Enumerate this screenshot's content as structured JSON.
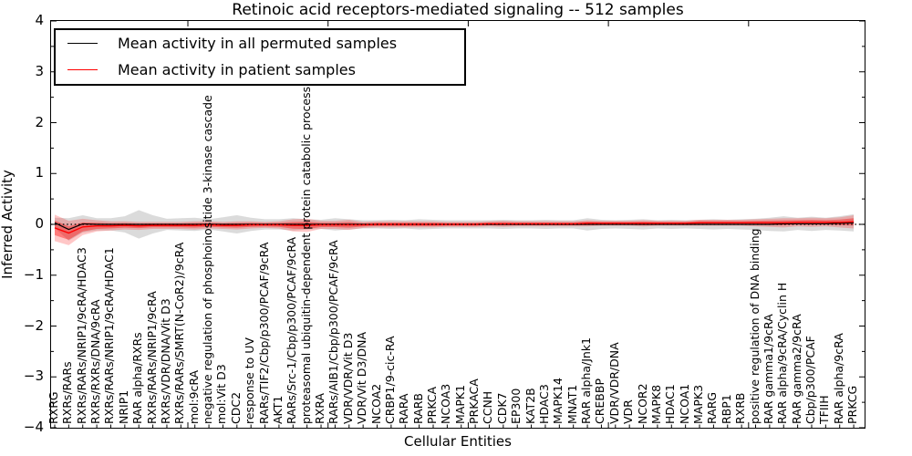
{
  "title": "Retinoic acid receptors-mediated signaling -- 512 samples",
  "axes": {
    "ylabel": "Inferred Activity",
    "xlabel": "Cellular Entities",
    "ytick_labels": [
      "4",
      "3",
      "2",
      "1",
      "0",
      "−1",
      "−2",
      "−3",
      "−4"
    ],
    "ytick_values": [
      4,
      3,
      2,
      1,
      0,
      -1,
      -2,
      -3,
      -4
    ]
  },
  "legend": {
    "entries": [
      {
        "label": "Mean activity in all permuted samples",
        "color": "#000000"
      },
      {
        "label": "Mean activity in patient samples",
        "color": "#ff0000"
      }
    ]
  },
  "chart_data": {
    "type": "line",
    "title": "Retinoic acid receptors-mediated signaling -- 512 samples",
    "xlabel": "Cellular Entities",
    "ylabel": "Inferred Activity",
    "ylim": [
      -4,
      4
    ],
    "grid": false,
    "legend_position": "upper left",
    "zero_reference_line": "dotted black at y=0",
    "categories": [
      "RXRG",
      "RXRs/RARs",
      "RXRs/RARs/NRIP1/9cRA/HDAC3",
      "RXRs/RXRs/DNA/9cRA",
      "RXRs/RARs/NRIP1/9cRA/HDAC1",
      "NRIP1",
      "RAR alpha/RXRs",
      "RXRs/RARs/NRIP1/9cRA",
      "RXRs/VDR/DNA/Vit D3",
      "RXRs/RARs/SMRT(N-CoR2)/9cRA",
      "mol:9cRA",
      "negative regulation of phosphoinositide 3-kinase cascade",
      "mol:Vit D3",
      "CDC2",
      "response to UV",
      "RARs/TIF2/Cbp/p300/PCAF/9cRA",
      "AKT1",
      "RARs/Src-1/Cbp/p300/PCAF/9cRA",
      "proteasomal ubiquitin-dependent protein catabolic process",
      "RXRA",
      "RARs/AIB1/Cbp/p300/PCAF/9cRA",
      "VDR/VDR/Vit D3",
      "VDR/Vit D3/DNA",
      "NCOA2",
      "CRBP1/9-cic-RA",
      "RARA",
      "RARB",
      "PRKCA",
      "NCOA3",
      "MAPK1",
      "PRKACA",
      "CCNH",
      "CDK7",
      "EP300",
      "KAT2B",
      "HDAC3",
      "MAPK14",
      "MNAT1",
      "RAR alpha/Jnk1",
      "CREBBP",
      "VDR/VDR/DNA",
      "VDR",
      "NCOR2",
      "MAPK8",
      "HDAC1",
      "NCOA1",
      "MAPK3",
      "RARG",
      "RBP1",
      "RXRB",
      "positive regulation of DNA binding",
      "RAR gamma1/9cRA",
      "RAR alpha/9cRA/Cyclin H",
      "RAR gamma2/9cRA",
      "Cbp/p300/PCAF",
      "TFIIH",
      "RAR alpha/9cRA",
      "PRKCG"
    ],
    "series": [
      {
        "name": "Mean activity in all permuted samples",
        "color": "#000000",
        "values": [
          0.03,
          -0.1,
          0.01,
          0,
          0,
          0,
          0,
          0,
          0,
          0,
          0,
          0,
          0,
          0,
          0,
          0,
          0,
          0,
          0,
          0,
          0,
          0,
          0,
          0,
          0,
          0,
          0,
          0,
          0,
          0,
          0,
          0,
          0,
          0,
          0,
          0,
          0,
          0,
          0,
          0,
          0,
          0,
          0,
          0,
          0,
          0,
          0,
          0,
          0,
          0,
          0,
          0,
          0.01,
          0.01,
          0.01,
          0.01,
          0.02,
          0.03
        ]
      },
      {
        "name": "Mean activity in patient samples",
        "color": "#ff0000",
        "values": [
          -0.07,
          -0.17,
          -0.05,
          -0.03,
          -0.03,
          -0.02,
          -0.03,
          -0.02,
          -0.02,
          -0.02,
          -0.02,
          -0.01,
          -0.02,
          -0.02,
          -0.01,
          -0.01,
          -0.01,
          -0.02,
          -0.02,
          -0.01,
          -0.01,
          -0.01,
          -0.01,
          0,
          0,
          0,
          0,
          0,
          0,
          0,
          0,
          0.01,
          0.01,
          0.01,
          0.01,
          0.01,
          0.01,
          0.01,
          0.02,
          0.02,
          0.02,
          0.02,
          0.02,
          0.02,
          0.02,
          0.02,
          0.03,
          0.03,
          0.03,
          0.03,
          0.03,
          0.03,
          0.03,
          0.04,
          0.04,
          0.04,
          0.04,
          0.05
        ]
      }
    ],
    "bands": [
      {
        "name": "permuted-std-band",
        "center_series": 0,
        "color": "#999999",
        "opacity": 0.35,
        "half_widths": [
          0.1,
          0.22,
          0.17,
          0.12,
          0.12,
          0.16,
          0.28,
          0.18,
          0.11,
          0.12,
          0.13,
          0.1,
          0.14,
          0.18,
          0.13,
          0.1,
          0.1,
          0.12,
          0.1,
          0.09,
          0.12,
          0.1,
          0.08,
          0.08,
          0.09,
          0.08,
          0.1,
          0.09,
          0.08,
          0.08,
          0.08,
          0.08,
          0.09,
          0.08,
          0.08,
          0.09,
          0.08,
          0.08,
          0.12,
          0.09,
          0.08,
          0.09,
          0.1,
          0.08,
          0.09,
          0.08,
          0.09,
          0.1,
          0.09,
          0.1,
          0.11,
          0.13,
          0.15,
          0.12,
          0.14,
          0.12,
          0.14,
          0.17
        ]
      },
      {
        "name": "patient-std-band-outer",
        "center_series": 1,
        "color": "#ff0000",
        "opacity": 0.22,
        "half_widths": [
          0.26,
          0.24,
          0.16,
          0.11,
          0.09,
          0.08,
          0.08,
          0.07,
          0.07,
          0.07,
          0.08,
          0.07,
          0.07,
          0.08,
          0.07,
          0.06,
          0.07,
          0.12,
          0.13,
          0.08,
          0.08,
          0.1,
          0.06,
          0.06,
          0.06,
          0.06,
          0.06,
          0.06,
          0.05,
          0.05,
          0.05,
          0.05,
          0.06,
          0.05,
          0.05,
          0.05,
          0.05,
          0.05,
          0.06,
          0.05,
          0.05,
          0.05,
          0.06,
          0.05,
          0.05,
          0.05,
          0.06,
          0.06,
          0.06,
          0.06,
          0.07,
          0.08,
          0.09,
          0.08,
          0.09,
          0.08,
          0.1,
          0.13
        ]
      },
      {
        "name": "patient-std-band-inner",
        "center_series": 1,
        "color": "#ff0000",
        "opacity": 0.38,
        "half_width_scale_of": 1,
        "scale": 0.55,
        "half_widths": []
      }
    ]
  }
}
